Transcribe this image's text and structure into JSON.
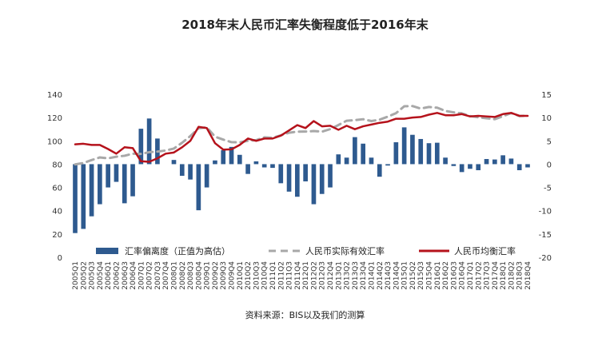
{
  "title": "2018年末人民币汇率失衡程度低于2016年末",
  "source": "资料来源：BIS以及我们的测算",
  "chart_data": {
    "type": "bar",
    "categories": [
      "2005Q1",
      "2005Q2",
      "2005Q3",
      "2005Q4",
      "2006Q1",
      "2006Q2",
      "2006Q3",
      "2006Q4",
      "2007Q1",
      "2007Q2",
      "2007Q3",
      "2007Q4",
      "2008Q1",
      "2008Q2",
      "2008Q3",
      "2008Q4",
      "2009Q1",
      "2009Q2",
      "2009Q3",
      "2009Q4",
      "2010Q1",
      "2010Q2",
      "2010Q3",
      "2010Q4",
      "2011Q1",
      "2011Q2",
      "2011Q3",
      "2011Q4",
      "2012Q1",
      "2012Q2",
      "2012Q3",
      "2012Q4",
      "2013Q1",
      "2013Q2",
      "2013Q3",
      "2013Q4",
      "2014Q1",
      "2014Q2",
      "2014Q3",
      "2014Q4",
      "2015Q1",
      "2015Q2",
      "2015Q3",
      "2015Q4",
      "2016Q1",
      "2016Q2",
      "2016Q3",
      "2016Q4",
      "2017Q1",
      "2017Q2",
      "2017Q3",
      "2017Q4",
      "2018Q1",
      "2018Q2",
      "2018Q3",
      "2018Q4"
    ],
    "left_axis": {
      "ylim": [
        0,
        140
      ],
      "ticks": [
        0,
        20,
        40,
        60,
        80,
        100,
        120,
        140
      ]
    },
    "right_axis": {
      "ylim": [
        -20,
        15
      ],
      "ticks": [
        -20,
        -15,
        -10,
        -5,
        0,
        5,
        10,
        15
      ]
    },
    "grid": false,
    "legend_position": "bottom",
    "series": [
      {
        "name": "汇率偏离度（正值为高估）",
        "type": "bar",
        "axis": "right",
        "color": "#2e5a8f",
        "values": [
          -14.8,
          -13.9,
          -11.2,
          -8.6,
          -5.0,
          -3.8,
          -8.4,
          -6.9,
          7.6,
          9.8,
          5.5,
          0.0,
          0.9,
          -2.5,
          -3.3,
          -9.9,
          -5.0,
          0.8,
          3.0,
          3.7,
          2.0,
          -2.1,
          0.6,
          -0.7,
          -0.8,
          -4.1,
          -5.9,
          -7.0,
          -3.7,
          -8.6,
          -6.4,
          -5.0,
          2.1,
          1.4,
          5.8,
          4.4,
          1.4,
          -2.7,
          -0.3,
          4.7,
          7.9,
          6.3,
          5.4,
          4.5,
          4.6,
          1.4,
          -0.4,
          -1.7,
          -1.0,
          -1.3,
          1.1,
          1.0,
          1.9,
          1.2,
          -1.3,
          -0.7
        ]
      },
      {
        "name": "人民币实际有效汇率",
        "type": "line",
        "axis": "left",
        "style": "dashed",
        "color": "#a8a8a8",
        "values": [
          79.8,
          81.0,
          83.5,
          85.8,
          85.0,
          86.4,
          87.2,
          89.0,
          88.8,
          90.3,
          90.8,
          91.7,
          93.4,
          98.4,
          104.1,
          110.8,
          111.6,
          103.6,
          101.1,
          98.9,
          98.7,
          100.1,
          100.6,
          103.0,
          102.6,
          104.7,
          107.0,
          107.9,
          108.0,
          108.4,
          107.9,
          110.1,
          113.6,
          117.3,
          117.8,
          118.6,
          117.0,
          118.2,
          120.8,
          123.8,
          129.7,
          129.9,
          127.7,
          129.1,
          128.5,
          125.7,
          124.5,
          123.6,
          121.3,
          120.2,
          119.4,
          118.6,
          121.2,
          123.9,
          121.3,
          121.7
        ]
      },
      {
        "name": "人民币均衡汇率",
        "type": "line",
        "axis": "left",
        "color": "#b5121b",
        "values": [
          97.0,
          97.5,
          96.5,
          96.5,
          93.0,
          89.0,
          94.5,
          93.8,
          82.5,
          82.0,
          85.0,
          89.0,
          90.0,
          94.5,
          100.0,
          112.0,
          111.0,
          98.0,
          92.5,
          92.7,
          96.5,
          102.0,
          100.0,
          102.0,
          102.0,
          104.5,
          109.0,
          113.5,
          111.0,
          117.0,
          112.5,
          113.0,
          109.5,
          113.0,
          110.0,
          112.5,
          114.0,
          115.5,
          116.5,
          119.0,
          119.0,
          120.0,
          120.5,
          122.5,
          124.0,
          122.0,
          122.0,
          123.0,
          121.0,
          121.5,
          121.0,
          120.5,
          123.0,
          124.0,
          121.5,
          121.5
        ]
      }
    ]
  }
}
